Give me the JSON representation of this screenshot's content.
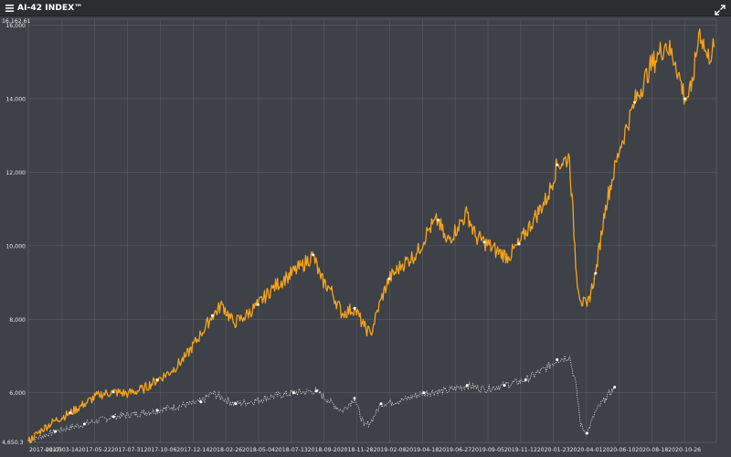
{
  "window": {
    "title": "AI-42 INDEX™",
    "menu_icon": "hamburger-menu-icon",
    "expand_icon": "expand-arrows-icon"
  },
  "colors": {
    "background": "#3e4147",
    "grid": "#5a5d63",
    "primary_series": "#f5a31a",
    "benchmark_series": "#d9d9d9",
    "marker": "#ffffff"
  },
  "chart_data": {
    "type": "line",
    "ylim": [
      4650.3,
      16162.61
    ],
    "y_min_label": "4,650.3",
    "y_max_label": "16,162.61",
    "y_ticks": [
      6000,
      8000,
      10000,
      12000,
      14000,
      16000
    ],
    "y_tick_labels": [
      "6,000",
      "8,000",
      "10,000",
      "12,000",
      "14,000",
      "16,000"
    ],
    "x_tick_labels": [
      "2017-01-03",
      "2017-03-14",
      "2017-05-22",
      "2017-07-31",
      "2017-10-06",
      "2017-12-14",
      "2018-02-26",
      "2018-05-04",
      "2018-07-13",
      "2018-09-20",
      "2018-11-28",
      "2019-02-08",
      "2019-04-18",
      "2019-06-27",
      "2019-09-05",
      "2019-11-12",
      "2020-01-23",
      "2020-04-01",
      "2020-06-10",
      "2020-08-18",
      "2020-10-26"
    ],
    "xlim": [
      "2017-01-03",
      "2020-12-20"
    ],
    "grid": true,
    "series": [
      {
        "x": [
          "2017-01-03",
          "2017-02-01",
          "2017-03-01",
          "2017-04-01",
          "2017-05-01",
          "2017-06-01",
          "2017-07-01",
          "2017-08-01",
          "2017-09-01",
          "2017-10-01",
          "2017-11-01",
          "2017-12-01",
          "2018-01-01",
          "2018-01-25",
          "2018-02-15",
          "2018-03-10",
          "2018-04-01",
          "2018-05-01",
          "2018-06-01",
          "2018-07-01",
          "2018-08-01",
          "2018-08-25",
          "2018-09-10",
          "2018-10-01",
          "2018-10-25",
          "2018-11-20",
          "2018-12-10",
          "2018-12-24",
          "2019-01-15",
          "2019-02-01",
          "2019-03-01",
          "2019-04-01",
          "2019-04-25",
          "2019-05-15",
          "2019-06-01",
          "2019-06-25",
          "2019-07-15",
          "2019-08-01",
          "2019-08-20",
          "2019-09-15",
          "2019-10-10",
          "2019-11-01",
          "2019-12-01",
          "2020-01-01",
          "2020-01-20",
          "2020-02-15",
          "2020-03-01",
          "2020-03-10",
          "2020-03-23",
          "2020-04-10",
          "2020-05-01",
          "2020-06-01",
          "2020-07-01",
          "2020-08-01",
          "2020-08-20",
          "2020-09-05",
          "2020-09-25",
          "2020-10-15",
          "2020-10-28",
          "2020-11-15",
          "2020-12-01",
          "2020-12-15"
        ],
        "values": [
          4680,
          5000,
          5250,
          5450,
          5700,
          5950,
          6020,
          5980,
          6100,
          6350,
          6600,
          7000,
          7600,
          8100,
          8400,
          7900,
          8050,
          8400,
          8850,
          9150,
          9450,
          9750,
          9100,
          8800,
          8150,
          8300,
          7800,
          7600,
          8550,
          9100,
          9500,
          9800,
          10450,
          10700,
          10100,
          10500,
          10900,
          10250,
          10100,
          9850,
          9700,
          10050,
          10700,
          11350,
          12200,
          12400,
          9200,
          8500,
          8350,
          9250,
          11100,
          12700,
          13900,
          14800,
          15200,
          15500,
          15000,
          14000,
          14200,
          15900,
          15100,
          15400
        ],
        "markers": [
          "2017-04-01",
          "2017-07-01",
          "2017-10-01",
          "2018-01-25",
          "2018-05-01",
          "2018-08-25",
          "2018-11-20",
          "2019-02-01",
          "2019-05-15",
          "2019-08-20",
          "2019-11-01",
          "2020-01-20",
          "2020-04-10",
          "2020-07-01",
          "2020-10-15"
        ]
      },
      {
        "x": [
          "2017-01-03",
          "2017-03-01",
          "2017-05-01",
          "2017-07-01",
          "2017-09-01",
          "2017-11-01",
          "2018-01-01",
          "2018-01-25",
          "2018-02-15",
          "2018-03-15",
          "2018-04-15",
          "2018-06-01",
          "2018-07-15",
          "2018-09-01",
          "2018-09-25",
          "2018-10-25",
          "2018-11-20",
          "2018-12-10",
          "2018-12-24",
          "2019-01-15",
          "2019-03-01",
          "2019-04-15",
          "2019-06-01",
          "2019-07-15",
          "2019-08-20",
          "2019-10-01",
          "2019-11-15",
          "2020-01-01",
          "2020-01-20",
          "2020-02-15",
          "2020-03-01",
          "2020-03-10",
          "2020-03-23",
          "2020-04-10",
          "2020-05-01",
          "2020-05-20"
        ],
        "values": [
          4680,
          4950,
          5150,
          5350,
          5450,
          5600,
          5750,
          6000,
          5850,
          5700,
          5750,
          5900,
          6000,
          6050,
          5800,
          5500,
          5850,
          5100,
          5200,
          5700,
          5800,
          6000,
          6050,
          6200,
          6100,
          6200,
          6350,
          6700,
          6900,
          7000,
          6100,
          5100,
          4900,
          5500,
          5850,
          6150
        ],
        "markers": [
          "2017-03-01",
          "2017-05-01",
          "2017-07-01",
          "2017-10-01",
          "2018-01-01",
          "2018-03-15",
          "2018-07-15",
          "2018-09-01",
          "2018-11-20",
          "2019-01-15",
          "2019-04-15",
          "2019-07-15",
          "2019-10-01",
          "2019-11-15",
          "2020-01-20",
          "2020-03-23",
          "2020-05-20"
        ]
      }
    ]
  }
}
